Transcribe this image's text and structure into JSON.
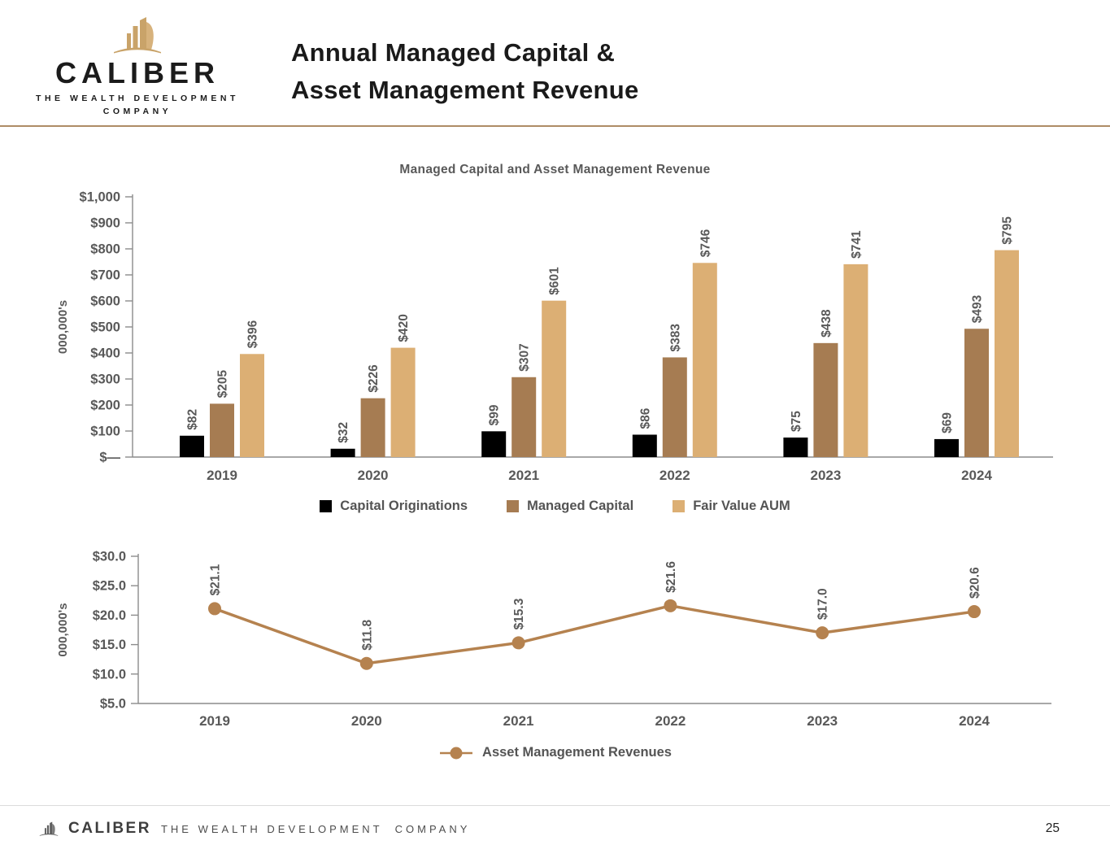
{
  "header": {
    "logo": {
      "brand": "CALIBER",
      "tagline_line1": "THE WEALTH DEVELOPMENT",
      "tagline_line2": "COMPANY"
    },
    "title_line1": "Annual Managed Capital &",
    "title_line2": "Asset Management Revenue"
  },
  "colors": {
    "capital_originations": "#000000",
    "managed_capital": "#A67C52",
    "fair_value_aum": "#DCAF74",
    "revenue_line": "#B5824F",
    "separator": "#AE8C66",
    "axis_gray": "#8C8C8C",
    "label_gray": "#595959"
  },
  "chart_data": [
    {
      "type": "bar",
      "title": "Managed Capital and Asset Management Revenue",
      "xlabel": "",
      "ylabel": "000,000's",
      "categories": [
        "2019",
        "2020",
        "2021",
        "2022",
        "2023",
        "2024"
      ],
      "series": [
        {
          "name": "Capital Originations",
          "color": "#000000",
          "values": [
            82,
            32,
            99,
            86,
            75,
            69
          ],
          "labels": [
            "$82",
            "$32",
            "$99",
            "$86",
            "$75",
            "$69"
          ]
        },
        {
          "name": "Managed Capital",
          "color": "#A67C52",
          "values": [
            205,
            226,
            307,
            383,
            438,
            493
          ],
          "labels": [
            "$205",
            "$226",
            "$307",
            "$383",
            "$438",
            "$493"
          ]
        },
        {
          "name": "Fair Value AUM",
          "color": "#DCAF74",
          "values": [
            396,
            420,
            601,
            746,
            741,
            795
          ],
          "labels": [
            "$396",
            "$420",
            "$601",
            "$746",
            "$741",
            "$795"
          ]
        }
      ],
      "ylim": [
        0,
        1000
      ],
      "ytick_step": 100,
      "ytick_labels": [
        "$—",
        "$100",
        "$200",
        "$300",
        "$400",
        "$500",
        "$600",
        "$700",
        "$800",
        "$900",
        "$1,000"
      ],
      "grid": false,
      "legend_position": "bottom"
    },
    {
      "type": "line",
      "title": "",
      "xlabel": "",
      "ylabel": "000,000's",
      "categories": [
        "2019",
        "2020",
        "2021",
        "2022",
        "2023",
        "2024"
      ],
      "series": [
        {
          "name": "Asset Management Revenues",
          "color": "#B5824F",
          "values": [
            21.1,
            11.8,
            15.3,
            21.6,
            17.0,
            20.6
          ],
          "labels": [
            "$21.1",
            "$11.8",
            "$15.3",
            "$21.6",
            "$17.0",
            "$20.6"
          ]
        }
      ],
      "ylim": [
        5,
        30
      ],
      "ytick_step": 5,
      "ytick_labels": [
        "$5.0",
        "$10.0",
        "$15.0",
        "$20.0",
        "$25.0",
        "$30.0"
      ],
      "grid": false,
      "legend_position": "bottom"
    }
  ],
  "footer": {
    "brand": "CALIBER",
    "tagline": "THE WEALTH DEVELOPMENT  COMPANY",
    "page_number": "25"
  }
}
